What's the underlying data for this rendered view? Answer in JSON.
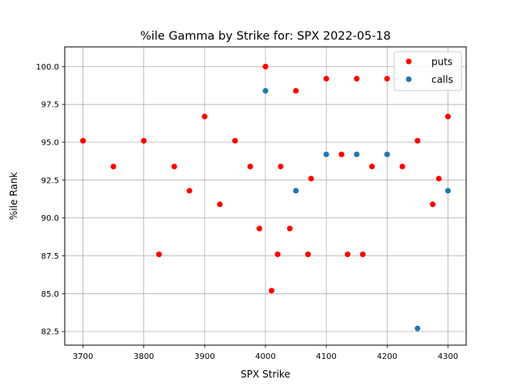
{
  "chart_data": {
    "type": "scatter",
    "title": "%ile Gamma by Strike for: SPX 2022-05-18",
    "xlabel": "SPX Strike",
    "ylabel": "%ile Rank",
    "xlim": [
      3670,
      4330
    ],
    "ylim": [
      81.6,
      101.3
    ],
    "xticks": [
      3700,
      3800,
      3900,
      4000,
      4100,
      4200,
      4300
    ],
    "yticks": [
      82.5,
      85.0,
      87.5,
      90.0,
      92.5,
      95.0,
      97.5,
      100.0
    ],
    "xtick_labels": [
      "3700",
      "3800",
      "3900",
      "4000",
      "4100",
      "4200",
      "4300"
    ],
    "ytick_labels": [
      "82.5",
      "85.0",
      "87.5",
      "90.0",
      "92.5",
      "95.0",
      "97.5",
      "100.0"
    ],
    "grid": true,
    "legend_position": "top-right",
    "series": [
      {
        "name": "puts",
        "color": "#ff0000",
        "points": [
          [
            3700,
            95.1
          ],
          [
            3750,
            93.4
          ],
          [
            3800,
            95.1
          ],
          [
            3825,
            87.6
          ],
          [
            3850,
            93.4
          ],
          [
            3875,
            91.8
          ],
          [
            3900,
            96.7
          ],
          [
            3925,
            90.9
          ],
          [
            3950,
            95.1
          ],
          [
            3975,
            93.4
          ],
          [
            3990,
            89.3
          ],
          [
            4000,
            100.0
          ],
          [
            4010,
            85.2
          ],
          [
            4020,
            87.6
          ],
          [
            4025,
            93.4
          ],
          [
            4040,
            89.3
          ],
          [
            4050,
            98.4
          ],
          [
            4070,
            87.6
          ],
          [
            4075,
            92.6
          ],
          [
            4100,
            99.2
          ],
          [
            4125,
            94.2
          ],
          [
            4135,
            87.6
          ],
          [
            4150,
            99.2
          ],
          [
            4160,
            87.6
          ],
          [
            4175,
            93.4
          ],
          [
            4200,
            99.2
          ],
          [
            4225,
            93.4
          ],
          [
            4250,
            95.1
          ],
          [
            4275,
            90.9
          ],
          [
            4285,
            92.6
          ],
          [
            4300,
            96.7
          ]
        ]
      },
      {
        "name": "calls",
        "color": "#1f77b4",
        "points": [
          [
            4000,
            98.4
          ],
          [
            4050,
            91.8
          ],
          [
            4100,
            94.2
          ],
          [
            4150,
            94.2
          ],
          [
            4200,
            94.2
          ],
          [
            4250,
            82.7
          ],
          [
            4300,
            91.8
          ]
        ]
      }
    ]
  }
}
